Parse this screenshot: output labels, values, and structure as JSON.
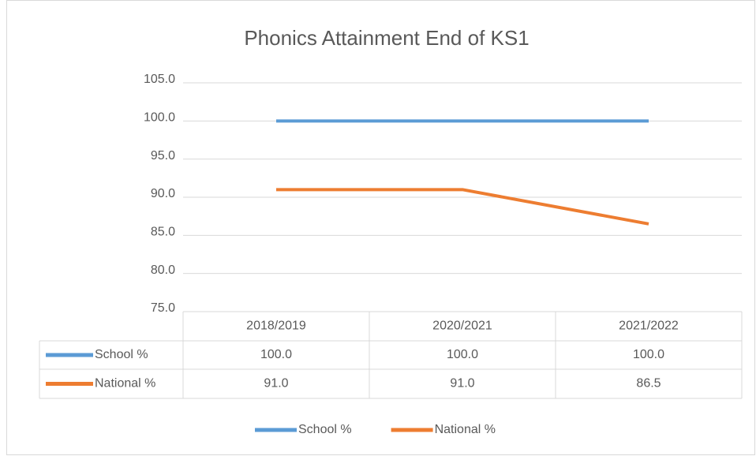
{
  "chart_data": {
    "type": "line",
    "title": "Phonics Attainment End of KS1",
    "categories": [
      "2018/2019",
      "2020/2021",
      "2021/2022"
    ],
    "series": [
      {
        "name": "School %",
        "color": "#5b9bd5",
        "values": [
          100,
          100,
          100
        ],
        "value_labels": [
          "100.0",
          "100.0",
          "100.0"
        ]
      },
      {
        "name": "National %",
        "color": "#ed7d31",
        "values": [
          91,
          91,
          86.5
        ],
        "value_labels": [
          "91.0",
          "91.0",
          "86.5"
        ]
      }
    ],
    "ylim": [
      75,
      105
    ],
    "yticks": [
      {
        "value": 75,
        "label": "75.0"
      },
      {
        "value": 80,
        "label": "80.0"
      },
      {
        "value": 85,
        "label": "85.0"
      },
      {
        "value": 90,
        "label": "90.0"
      },
      {
        "value": 95,
        "label": "95.0"
      },
      {
        "value": 100,
        "label": "100.0"
      },
      {
        "value": 105,
        "label": "105.0"
      }
    ],
    "grid": true,
    "legend": "bottom"
  }
}
